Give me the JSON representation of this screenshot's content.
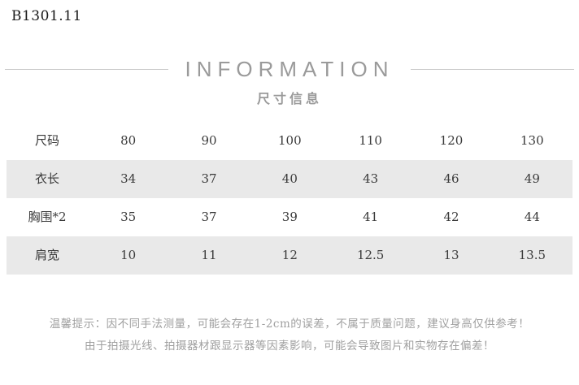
{
  "page": {
    "product_code": "B1301.11"
  },
  "header": {
    "title": "INFORMATION",
    "subtitle": "尺寸信息"
  },
  "size_table": {
    "columns": [
      "尺码",
      "80",
      "90",
      "100",
      "110",
      "120",
      "130"
    ],
    "rows": [
      {
        "label": "衣长",
        "values": [
          "34",
          "37",
          "40",
          "43",
          "46",
          "49"
        ]
      },
      {
        "label": "胸围*2",
        "values": [
          "35",
          "37",
          "39",
          "41",
          "42",
          "44"
        ]
      },
      {
        "label": "肩宽",
        "values": [
          "10",
          "11",
          "12",
          "12.5",
          "13",
          "13.5"
        ]
      }
    ]
  },
  "tips": {
    "line1": "温馨提示：因不同手法测量，可能会存在1-2cm的误差，不属于质量问题，建议身高仅供参考！",
    "line2": "由于拍摄光线、拍摄器材跟显示器等因素影响，可能会导致图片和实物存在偏差！"
  },
  "colors": {
    "title_gray": "#9a9a9a",
    "divider_gray": "#cccccc",
    "stripe_gray": "#e9e9e9",
    "table_text": "#3a3a3a",
    "tips_gray": "#a0a0a0",
    "background": "#ffffff"
  }
}
